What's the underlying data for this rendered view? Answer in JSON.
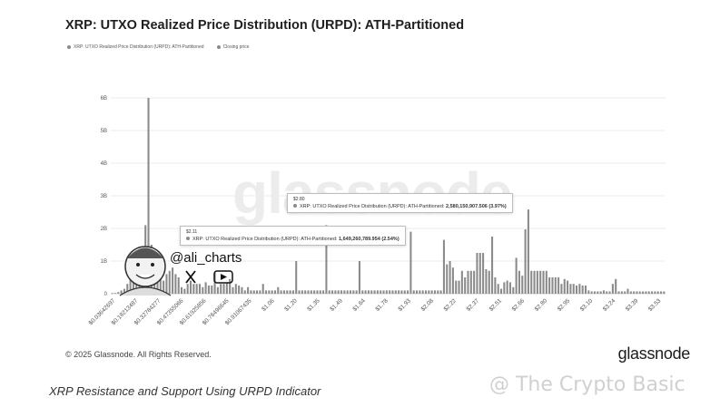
{
  "title": "XRP: UTXO Realized Price Distribution (URPD): ATH-Partitioned",
  "legend": {
    "series_label": "XRP: UTXO Realized Price Distribution (URPD): ATH-Partitioned",
    "closing_label": "Closing price"
  },
  "watermark": "glassnode",
  "handle": "@ali_charts",
  "tooltips": [
    {
      "price": "$2.11",
      "label": "XRP: UTXO Realized Price Distribution (URPD): ATH-Partitioned:",
      "value": "1,649,260,789.954 (2.54%)"
    },
    {
      "price": "$2.80",
      "label": "XRP: UTXO Realized Price Distribution (URPD): ATH-Partitioned:",
      "value": "2,580,150,907.506 (3.97%)"
    }
  ],
  "copyright": "© 2025 Glassnode. All Rights Reserved.",
  "brand": "glassnode",
  "caption": "XRP Resistance and Support Using URPD Indicator",
  "credit": "@ The Crypto Basic",
  "colors": {
    "bar": "#8a8a8a",
    "grid": "#ebebeb",
    "text": "#555555"
  },
  "chart_data": {
    "type": "bar",
    "title": "XRP: UTXO Realized Price Distribution (URPD): ATH-Partitioned",
    "ylabel": "",
    "xlabel": "",
    "ylim": [
      0,
      6
    ],
    "yticks": [
      0,
      1,
      2,
      3,
      4,
      5,
      6
    ],
    "ytick_labels": [
      "0",
      "1B",
      "2B",
      "3B",
      "4B",
      "5B",
      "6B"
    ],
    "xtick_labels": [
      "$0.03642697",
      "$0.18213487",
      "$0.32784277",
      "$0.47355066",
      "$0.61925856",
      "$0.76496645",
      "$0.91067435",
      "$1.06",
      "$1.20",
      "$1.35",
      "$1.49",
      "$1.64",
      "$1.78",
      "$1.93",
      "$2.08",
      "$2.22",
      "$2.37",
      "$2.51",
      "$2.66",
      "$2.80",
      "$2.95",
      "$3.10",
      "$3.24",
      "$3.39",
      "$3.53"
    ],
    "unit": "billion XRP",
    "values": [
      0.02,
      0.02,
      0.05,
      0.1,
      0.15,
      0.3,
      0.5,
      0.5,
      0.7,
      1.0,
      0.5,
      2.1,
      6.0,
      1.5,
      1.0,
      1.25,
      0.5,
      0.4,
      0.6,
      0.7,
      0.8,
      0.6,
      0.5,
      0.2,
      0.15,
      0.3,
      0.4,
      0.3,
      0.3,
      0.3,
      0.2,
      0.35,
      0.25,
      0.25,
      0.65,
      0.2,
      0.3,
      0.3,
      0.35,
      0.45,
      0.2,
      0.3,
      0.25,
      0.2,
      0.1,
      0.2,
      0.1,
      0.1,
      0.1,
      0.1,
      0.3,
      0.1,
      0.1,
      0.1,
      0.1,
      0.2,
      0.1,
      0.1,
      0.1,
      0.1,
      0.1,
      1.0,
      0.1,
      0.1,
      0.1,
      0.1,
      0.1,
      0.1,
      0.1,
      0.1,
      0.1,
      2.1,
      0.1,
      0.1,
      0.1,
      0.1,
      0.1,
      0.1,
      0.1,
      0.1,
      0.1,
      0.1,
      1.0,
      0.1,
      0.1,
      0.1,
      0.1,
      0.1,
      0.1,
      0.1,
      0.1,
      0.1,
      0.1,
      0.1,
      0.1,
      0.1,
      0.1,
      0.1,
      0.1,
      1.9,
      0.1,
      0.1,
      0.1,
      0.1,
      0.1,
      0.1,
      0.1,
      0.1,
      0.1,
      0.1,
      1.649,
      0.9,
      1.0,
      0.8,
      0.4,
      0.4,
      0.7,
      0.5,
      0.7,
      0.7,
      0.7,
      1.25,
      1.25,
      1.25,
      0.75,
      0.7,
      1.75,
      0.5,
      0.3,
      0.15,
      0.35,
      0.4,
      0.35,
      0.2,
      1.1,
      0.7,
      0.55,
      1.97,
      2.58,
      0.7,
      0.7,
      0.7,
      0.7,
      0.7,
      0.7,
      0.5,
      0.5,
      0.5,
      0.5,
      0.3,
      0.45,
      0.4,
      0.3,
      0.3,
      0.25,
      0.3,
      0.25,
      0.25,
      0.1,
      0.07,
      0.07,
      0.07,
      0.07,
      0.1,
      0.07,
      0.07,
      0.3,
      0.45,
      0.07,
      0.07,
      0.07,
      0.15,
      0.07,
      0.07,
      0.07,
      0.07,
      0.07,
      0.07,
      0.07,
      0.07,
      0.07,
      0.07,
      0.07,
      0.07
    ],
    "highlights": [
      {
        "price": "$2.11",
        "value": 1.649,
        "share_pct": 2.54
      },
      {
        "price": "$2.80",
        "value": 2.58,
        "share_pct": 3.97
      }
    ],
    "closing_price": "$2.11"
  }
}
